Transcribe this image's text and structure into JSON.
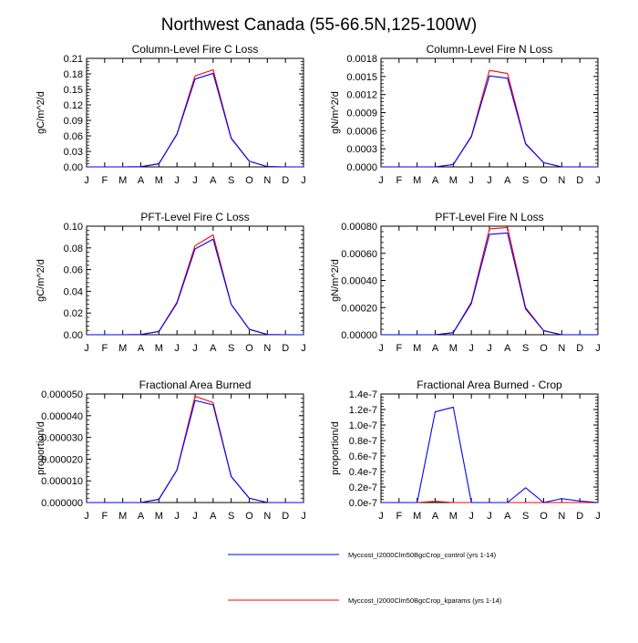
{
  "figure_title": "Northwest Canada (55-66.5N,125-100W)",
  "months": [
    "J",
    "F",
    "M",
    "A",
    "M",
    "J",
    "J",
    "A",
    "S",
    "O",
    "N",
    "D",
    "J"
  ],
  "colors": {
    "control": "#0000ff",
    "kparams": "#ff0000",
    "axis": "#000000"
  },
  "legend": {
    "control_label": "Myccost_I2000Clm50BgcCrop_control (yrs 1-14)",
    "kparams_label": "Myccost_I2000Clm50BgcCrop_kparams (yrs 1-14)"
  },
  "chart_data": [
    {
      "id": "col-c",
      "type": "line",
      "title": "Column-Level Fire C Loss",
      "ylabel": "gC/m^2/d",
      "ylim": [
        0,
        0.21
      ],
      "yticks": [
        "0.00",
        "0.03",
        "0.06",
        "0.09",
        "0.12",
        "0.15",
        "0.18",
        "0.21"
      ],
      "series": [
        {
          "name": "control",
          "values": [
            0,
            0,
            0,
            0.0003,
            0.006,
            0.063,
            0.17,
            0.181,
            0.055,
            0.011,
            0.0005,
            0,
            0
          ]
        },
        {
          "name": "kparams",
          "values": [
            0,
            0,
            0,
            0.0003,
            0.006,
            0.064,
            0.176,
            0.188,
            0.056,
            0.011,
            0.0005,
            0,
            0
          ]
        }
      ]
    },
    {
      "id": "col-n",
      "type": "line",
      "title": "Column-Level Fire N Loss",
      "ylabel": "gN/m^2/d",
      "ylim": [
        0,
        0.0018
      ],
      "yticks": [
        "0.0000",
        "0.0003",
        "0.0006",
        "0.0009",
        "0.0012",
        "0.0015",
        "0.0018"
      ],
      "series": [
        {
          "name": "control",
          "values": [
            0,
            0,
            0,
            0,
            4e-05,
            0.0005,
            0.00151,
            0.00147,
            0.00038,
            7e-05,
            0,
            0,
            0
          ]
        },
        {
          "name": "kparams",
          "values": [
            0,
            0,
            0,
            0,
            4e-05,
            0.00051,
            0.0016,
            0.00155,
            0.00039,
            7e-05,
            0,
            0,
            0
          ]
        }
      ]
    },
    {
      "id": "pft-c",
      "type": "line",
      "title": "PFT-Level Fire C Loss",
      "ylabel": "gC/m^2/d",
      "ylim": [
        0,
        0.1
      ],
      "yticks": [
        "0.00",
        "0.02",
        "0.04",
        "0.06",
        "0.08",
        "0.10"
      ],
      "series": [
        {
          "name": "control",
          "values": [
            0,
            0,
            0,
            0.0002,
            0.003,
            0.029,
            0.079,
            0.088,
            0.028,
            0.005,
            0.0002,
            0,
            0
          ]
        },
        {
          "name": "kparams",
          "values": [
            0,
            0,
            0,
            0.0002,
            0.003,
            0.03,
            0.082,
            0.092,
            0.028,
            0.005,
            0.0002,
            0,
            0
          ]
        }
      ]
    },
    {
      "id": "pft-n",
      "type": "line",
      "title": "PFT-Level Fire N Loss",
      "ylabel": "gN/m^2/d",
      "ylim": [
        0,
        0.0008
      ],
      "yticks": [
        "0.00000",
        "0.00020",
        "0.00040",
        "0.00060",
        "0.00080"
      ],
      "series": [
        {
          "name": "control",
          "values": [
            0,
            0,
            0,
            0,
            1.5e-05,
            0.00023,
            0.00074,
            0.00075,
            0.00019,
            3e-05,
            0,
            0,
            0
          ]
        },
        {
          "name": "kparams",
          "values": [
            0,
            0,
            0,
            0,
            1.6e-05,
            0.00024,
            0.00078,
            0.00079,
            0.0002,
            3e-05,
            0,
            0,
            0
          ]
        }
      ]
    },
    {
      "id": "area",
      "type": "line",
      "title": "Fractional Area Burned",
      "ylabel": "proportion/d",
      "ylim": [
        0,
        5e-05
      ],
      "yticks": [
        "0.000000",
        "0.000010",
        "0.000020",
        "0.000030",
        "0.000040",
        "0.000050"
      ],
      "series": [
        {
          "name": "control",
          "values": [
            0,
            0,
            0,
            0,
            1.5e-06,
            1.5e-05,
            4.7e-05,
            4.5e-05,
            1.2e-05,
            2e-06,
            0,
            0,
            0
          ]
        },
        {
          "name": "kparams",
          "values": [
            0,
            0,
            0,
            0,
            1.5e-06,
            1.5e-05,
            4.9e-05,
            4.6e-05,
            1.2e-05,
            2e-06,
            0,
            0,
            0
          ]
        }
      ]
    },
    {
      "id": "area-crop",
      "type": "line",
      "title": "Fractional Area Burned - Crop",
      "ylabel": "proportion/d",
      "ylim": [
        0,
        1.4e-07
      ],
      "yticks": [
        "0.0e-7",
        "0.2e-7",
        "0.4e-7",
        "0.6e-7",
        "0.8e-7",
        "1.0e-7",
        "1.2e-7",
        "1.4e-7"
      ],
      "series": [
        {
          "name": "control",
          "values": [
            0,
            0,
            0,
            1.17e-07,
            1.23e-07,
            0,
            0,
            0,
            1.9e-08,
            0,
            5e-09,
            2e-09,
            0
          ]
        },
        {
          "name": "kparams",
          "values": [
            0,
            0,
            0,
            1.5e-09,
            0,
            0,
            0,
            0,
            0,
            0,
            0,
            0,
            0
          ]
        }
      ]
    }
  ]
}
